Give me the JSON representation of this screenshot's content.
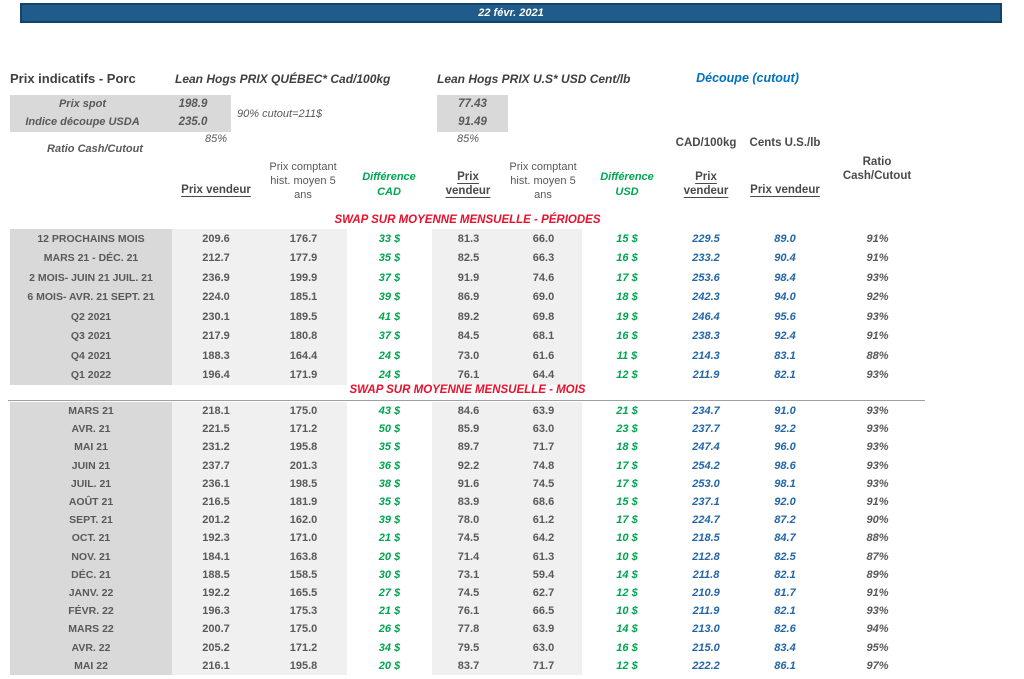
{
  "date_bar": "22 févr. 2021",
  "colors": {
    "bar_blue": "#1F5C8C",
    "cutout_blue": "#0070C0",
    "value_blue": "#2366A8",
    "diff_green": "#00A550",
    "section_red": "#E8112D",
    "label_gray_bg": "#D9D9D9",
    "column_gray_bg": "#F0F0F0",
    "text_gray": "#595959"
  },
  "header": {
    "title": "Prix indicatifs - Porc",
    "quebec_title": "Lean Hogs PRIX QUÉBEC* Cad/100kg",
    "us_title": "Lean Hogs PRIX U.S* USD Cent/lb",
    "cutout_title": "Découpe (cutout)",
    "spot_label": "Prix spot",
    "spot_cad": "198.9",
    "spot_usd": "77.43",
    "usda_label": "Indice découpe USDA",
    "usda_cad": "235.0",
    "usda_usd": "91.49",
    "cutout_note": "90% cutout=211$",
    "ratio_label": "Ratio Cash/Cutout",
    "ratio_cad": "85%",
    "ratio_usd": "85%"
  },
  "columns": {
    "prix_vendeur": "Prix vendeur",
    "prix_comptant": "Prix comptant hist. moyen 5 ans",
    "diff_cad": "Différence CAD",
    "diff_usd": "Différence USD",
    "cad_unit": "CAD/100kg",
    "us_unit": "Cents U.S./lb",
    "ratio_header": "Ratio Cash/Cutout"
  },
  "sections": [
    {
      "title": "SWAP SUR MOYENNE MENSUELLE - PÉRIODES",
      "rows": [
        [
          "12 PROCHAINS MOIS",
          "209.6",
          "176.7",
          "33 $",
          "81.3",
          "66.0",
          "15 $",
          "229.5",
          "89.0",
          "91%"
        ],
        [
          "MARS 21 -  DÉC. 21",
          "212.7",
          "177.9",
          "35 $",
          "82.5",
          "66.3",
          "16 $",
          "233.2",
          "90.4",
          "91%"
        ],
        [
          "2 MOIS- JUIN 21 JUIL. 21",
          "236.9",
          "199.9",
          "37 $",
          "91.9",
          "74.6",
          "17 $",
          "253.6",
          "98.4",
          "93%"
        ],
        [
          "6 MOIS- AVR. 21 SEPT. 21",
          "224.0",
          "185.1",
          "39 $",
          "86.9",
          "69.0",
          "18 $",
          "242.3",
          "94.0",
          "92%"
        ],
        [
          "Q2 2021",
          "230.1",
          "189.5",
          "41 $",
          "89.2",
          "69.8",
          "19 $",
          "246.4",
          "95.6",
          "93%"
        ],
        [
          "Q3 2021",
          "217.9",
          "180.8",
          "37 $",
          "84.5",
          "68.1",
          "16 $",
          "238.3",
          "92.4",
          "91%"
        ],
        [
          "Q4 2021",
          "188.3",
          "164.4",
          "24 $",
          "73.0",
          "61.6",
          "11 $",
          "214.3",
          "83.1",
          "88%"
        ],
        [
          "Q1 2022",
          "196.4",
          "171.9",
          "24 $",
          "76.1",
          "64.4",
          "12 $",
          "211.9",
          "82.1",
          "93%"
        ]
      ]
    },
    {
      "title": "SWAP SUR MOYENNE MENSUELLE - MOIS",
      "rows": [
        [
          "MARS 21",
          "218.1",
          "175.0",
          "43 $",
          "84.6",
          "63.9",
          "21 $",
          "234.7",
          "91.0",
          "93%"
        ],
        [
          "AVR. 21",
          "221.5",
          "171.2",
          "50 $",
          "85.9",
          "63.0",
          "23 $",
          "237.7",
          "92.2",
          "93%"
        ],
        [
          "MAI 21",
          "231.2",
          "195.8",
          "35 $",
          "89.7",
          "71.7",
          "18 $",
          "247.4",
          "96.0",
          "93%"
        ],
        [
          "JUIN 21",
          "237.7",
          "201.3",
          "36 $",
          "92.2",
          "74.8",
          "17 $",
          "254.2",
          "98.6",
          "93%"
        ],
        [
          "JUIL. 21",
          "236.1",
          "198.5",
          "38 $",
          "91.6",
          "74.5",
          "17 $",
          "253.0",
          "98.1",
          "93%"
        ],
        [
          "AOÛT 21",
          "216.5",
          "181.9",
          "35 $",
          "83.9",
          "68.6",
          "15 $",
          "237.1",
          "92.0",
          "91%"
        ],
        [
          "SEPT. 21",
          "201.2",
          "162.0",
          "39 $",
          "78.0",
          "61.2",
          "17 $",
          "224.7",
          "87.2",
          "90%"
        ],
        [
          "OCT. 21",
          "192.3",
          "171.0",
          "21 $",
          "74.5",
          "64.2",
          "10 $",
          "218.5",
          "84.7",
          "88%"
        ],
        [
          "NOV. 21",
          "184.1",
          "163.8",
          "20 $",
          "71.4",
          "61.3",
          "10 $",
          "212.8",
          "82.5",
          "87%"
        ],
        [
          "DÉC. 21",
          "188.5",
          "158.5",
          "30 $",
          "73.1",
          "59.4",
          "14 $",
          "211.8",
          "82.1",
          "89%"
        ],
        [
          "JANV. 22",
          "192.2",
          "165.5",
          "27 $",
          "74.5",
          "62.7",
          "12 $",
          "210.9",
          "81.7",
          "91%"
        ],
        [
          "FÉVR. 22",
          "196.3",
          "175.3",
          "21 $",
          "76.1",
          "66.5",
          "10 $",
          "211.9",
          "82.1",
          "93%"
        ],
        [
          "MARS 22",
          "200.7",
          "175.0",
          "26 $",
          "77.8",
          "63.9",
          "14 $",
          "213.0",
          "82.6",
          "94%"
        ],
        [
          "AVR. 22",
          "205.2",
          "171.2",
          "34 $",
          "79.5",
          "63.0",
          "16 $",
          "215.0",
          "83.4",
          "95%"
        ],
        [
          "MAI 22",
          "216.1",
          "195.8",
          "20 $",
          "83.7",
          "71.7",
          "12 $",
          "222.2",
          "86.1",
          "97%"
        ]
      ]
    }
  ]
}
